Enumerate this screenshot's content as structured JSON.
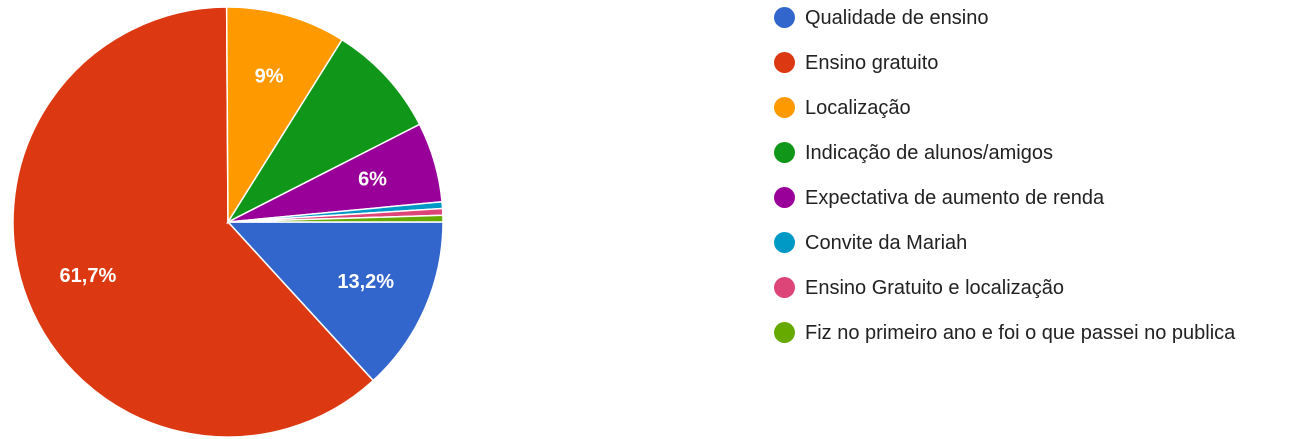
{
  "chart_data": {
    "type": "pie",
    "categories": [
      "Qualidade de ensino",
      "Ensino gratuito",
      "Localização",
      "Indicação de alunos/amigos",
      "Expectativa de aumento de renda",
      "Convite da Mariah",
      "Ensino Gratuito e localização",
      "Fiz no primeiro ano e foi o que passei no publica"
    ],
    "values": [
      13.2,
      61.7,
      9,
      8.6,
      6,
      0.5,
      0.5,
      0.5
    ],
    "value_labels": [
      "13,2%",
      "61,7%",
      "9%",
      null,
      "6%",
      null,
      null,
      null
    ],
    "colors": [
      "#3366cc",
      "#dc3912",
      "#ff9900",
      "#109618",
      "#990099",
      "#0099c6",
      "#dd4477",
      "#66aa00"
    ]
  }
}
